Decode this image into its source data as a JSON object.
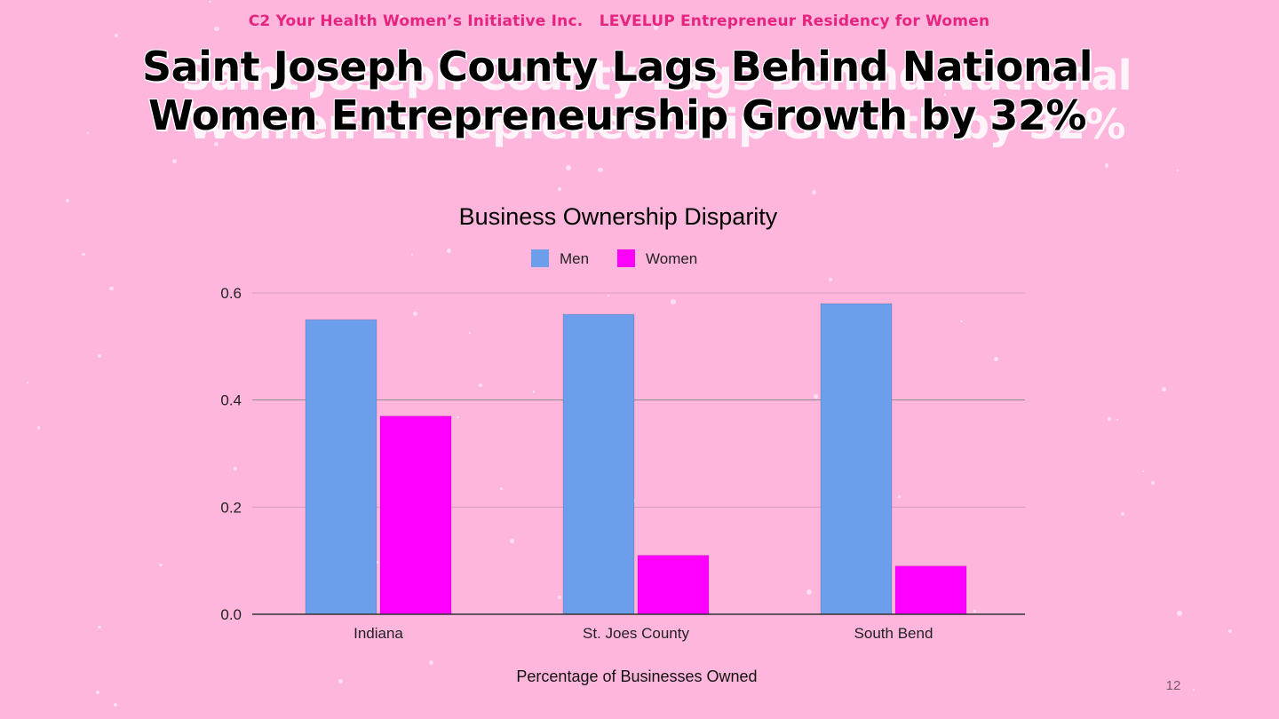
{
  "slide": {
    "org_line": "C2 Your Health Women’s Initiative Inc.   LEVELUP Entrepreneur Residency for Women",
    "headline_line1": "Saint Joseph County Lags Behind National",
    "headline_line2": "Women Entrepreneurship Growth by 32%",
    "page_number": "12"
  },
  "colors": {
    "background": "#ffb6dc",
    "org_text": "#e6247f",
    "men": "#6d9eeb",
    "women": "#ff00ff"
  },
  "chart_data": {
    "type": "bar",
    "title": "Business Ownership Disparity",
    "xlabel": "Percentage of Businesses Owned",
    "ylabel": "",
    "categories": [
      "Indiana",
      "St. Joes County",
      "South Bend"
    ],
    "series": [
      {
        "name": "Men",
        "values": [
          0.55,
          0.56,
          0.58
        ],
        "color": "#6d9eeb"
      },
      {
        "name": "Women",
        "values": [
          0.37,
          0.11,
          0.09
        ],
        "color": "#ff00ff"
      }
    ],
    "ylim": [
      0,
      0.6
    ],
    "yticks": [
      "0.0",
      "0.2",
      "0.4",
      "0.6"
    ],
    "legend_position": "top",
    "grid": true
  }
}
